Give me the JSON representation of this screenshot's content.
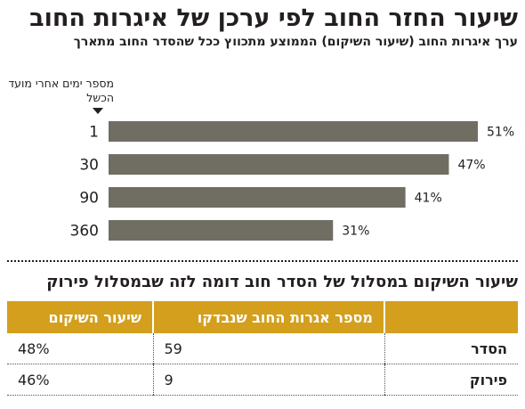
{
  "chart_data": {
    "type": "bar",
    "orientation": "horizontal",
    "title": "שיעור החזר החוב לפי ערכן של איגרות החוב",
    "subtitle": "ערך איגרות החוב (שיעור השיקום) הממוצע מתכווץ ככל שהסדר החוב מתארך",
    "ylabel": "מספר ימים אחרי מועד הכשל",
    "categories": [
      "1",
      "30",
      "90",
      "360"
    ],
    "values": [
      51,
      47,
      41,
      31
    ],
    "value_labels": [
      "51%",
      "47%",
      "41%",
      "31%"
    ],
    "bar_color": "#706e63",
    "xlim": [
      0,
      51
    ],
    "grid": false
  },
  "table": {
    "title": "שיעור השיקום במסלול של הסדר חוב דומה לזה שבמסלול פירוק",
    "header_color": "#d39f1d",
    "headers": [
      "",
      "מספר אגרות החוב שנבדקו",
      "שיעור השיקום"
    ],
    "rows": [
      {
        "label": "הסדר",
        "count": "59",
        "rate": "48%"
      },
      {
        "label": "פירוק",
        "count": "9",
        "rate": "46%"
      }
    ]
  }
}
